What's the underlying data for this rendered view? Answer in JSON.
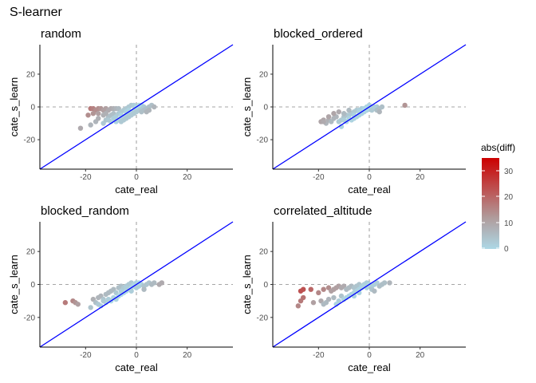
{
  "figure_title": "S-learner",
  "legend": {
    "title": "abs(diff)",
    "ticks": [
      "30",
      "20",
      "10",
      "0"
    ],
    "color_high": "#cc0000",
    "color_mid": "#b09a9a",
    "color_low": "#add8e6"
  },
  "colors": {
    "identity_line": "#0000ff",
    "reference_lines": "#a6a6a6"
  },
  "chart_data": [
    {
      "type": "scatter",
      "title": "random",
      "xlabel": "cate_real",
      "ylabel": "cate_s_learn",
      "xlim": [
        -38,
        38
      ],
      "ylim": [
        -38,
        38
      ],
      "x_ticks": [
        "-20",
        "0",
        "20"
      ],
      "y_ticks": [
        "20",
        "0",
        "-20"
      ],
      "reference_lines": {
        "x": 0,
        "y": 0
      },
      "identity_line": true,
      "grid": false,
      "points": [
        [
          -18,
          -1
        ],
        [
          -17,
          -1
        ],
        [
          -16,
          -2
        ],
        [
          -15,
          -1
        ],
        [
          -14,
          -1
        ],
        [
          -13,
          -2
        ],
        [
          -12,
          -1
        ],
        [
          -11,
          -2
        ],
        [
          -10,
          -1
        ],
        [
          -9,
          -1
        ],
        [
          -8,
          -1
        ],
        [
          -7,
          -1
        ],
        [
          -17,
          -4
        ],
        [
          -15,
          -4
        ],
        [
          -19,
          -5
        ],
        [
          -22,
          -13
        ],
        [
          -18,
          -11
        ],
        [
          -16,
          -9
        ],
        [
          -15,
          -7
        ],
        [
          -13,
          -10
        ],
        [
          -12,
          -8
        ],
        [
          -11,
          -6
        ],
        [
          -10,
          -5
        ],
        [
          -9,
          -4
        ],
        [
          -8,
          -6
        ],
        [
          -7,
          -4
        ],
        [
          -6,
          -3
        ],
        [
          -5,
          -2
        ],
        [
          -4,
          -1
        ],
        [
          -3,
          0
        ],
        [
          -2,
          1
        ],
        [
          -1,
          1
        ],
        [
          0,
          -1
        ],
        [
          1,
          0
        ],
        [
          2,
          1
        ],
        [
          3,
          0
        ],
        [
          4,
          -1
        ],
        [
          5,
          0
        ],
        [
          6,
          1
        ],
        [
          7,
          0
        ],
        [
          -7,
          -8
        ],
        [
          -6,
          -7
        ],
        [
          -5,
          -6
        ],
        [
          -4,
          -5
        ],
        [
          -3,
          -4
        ],
        [
          -2,
          -3
        ],
        [
          -1,
          -2
        ],
        [
          0,
          -3
        ],
        [
          -8,
          -9
        ],
        [
          -9,
          -7
        ],
        [
          -10,
          -9
        ],
        [
          -11,
          -8
        ],
        [
          -6,
          -9
        ],
        [
          -5,
          -8
        ],
        [
          -4,
          -7
        ],
        [
          -3,
          -6
        ],
        [
          -2,
          -5
        ],
        [
          1,
          -2
        ],
        [
          2,
          -1
        ],
        [
          3,
          -2
        ],
        [
          4,
          -3
        ],
        [
          5,
          -2
        ],
        [
          -1,
          -4
        ],
        [
          0,
          0
        ],
        [
          -4,
          -3
        ],
        [
          -6,
          -5
        ],
        [
          -12,
          -4
        ],
        [
          -13,
          -5
        ],
        [
          1,
          1
        ],
        [
          2,
          -3
        ],
        [
          -3,
          -2
        ]
      ]
    },
    {
      "type": "scatter",
      "title": "blocked_ordered",
      "xlabel": "cate_real",
      "ylabel": "cate_s_learn",
      "xlim": [
        -38,
        38
      ],
      "ylim": [
        -38,
        38
      ],
      "x_ticks": [
        "-20",
        "0",
        "20"
      ],
      "y_ticks": [
        "20",
        "0",
        "-20"
      ],
      "reference_lines": {
        "x": 0,
        "y": 0
      },
      "identity_line": true,
      "grid": false,
      "points": [
        [
          -19,
          -9
        ],
        [
          -18,
          -8
        ],
        [
          -17,
          -10
        ],
        [
          -16,
          -8
        ],
        [
          -15,
          -9
        ],
        [
          -14,
          -7
        ],
        [
          -13,
          -6
        ],
        [
          -12,
          -9
        ],
        [
          -11,
          -8
        ],
        [
          -10,
          -6
        ],
        [
          -9,
          -5
        ],
        [
          -8,
          -5
        ],
        [
          -7,
          -4
        ],
        [
          -6,
          -3
        ],
        [
          -5,
          -2
        ],
        [
          -4,
          -2
        ],
        [
          -3,
          -1
        ],
        [
          -2,
          -1
        ],
        [
          -1,
          0
        ],
        [
          0,
          1
        ],
        [
          1,
          0
        ],
        [
          2,
          -1
        ],
        [
          3,
          0
        ],
        [
          4,
          -1
        ],
        [
          14,
          1
        ],
        [
          -14,
          -4
        ],
        [
          -12,
          -3
        ],
        [
          -10,
          -4
        ],
        [
          -8,
          -2
        ],
        [
          -11,
          -12
        ],
        [
          -9,
          -9
        ],
        [
          -7,
          -8
        ],
        [
          -6,
          -7
        ],
        [
          -5,
          -6
        ],
        [
          -4,
          -5
        ],
        [
          -3,
          -4
        ],
        [
          -2,
          -3
        ],
        [
          -1,
          -2
        ],
        [
          0,
          -1
        ],
        [
          -8,
          -7
        ],
        [
          -10,
          -8
        ],
        [
          -16,
          -6
        ],
        [
          -18,
          -9
        ],
        [
          -6,
          -5
        ],
        [
          -4,
          -3
        ],
        [
          -2,
          -2
        ],
        [
          1,
          -2
        ],
        [
          2,
          0
        ],
        [
          3,
          -2
        ],
        [
          4,
          -3
        ],
        [
          5,
          0
        ],
        [
          -1,
          -1
        ]
      ]
    },
    {
      "type": "scatter",
      "title": "blocked_random",
      "xlabel": "cate_real",
      "ylabel": "cate_s_learn",
      "xlim": [
        -38,
        38
      ],
      "ylim": [
        -38,
        38
      ],
      "x_ticks": [
        "-20",
        "0",
        "20"
      ],
      "y_ticks": [
        "20",
        "0",
        "-20"
      ],
      "reference_lines": {
        "x": 0,
        "y": 0
      },
      "identity_line": true,
      "grid": false,
      "points": [
        [
          -28,
          -11
        ],
        [
          -25,
          -10
        ],
        [
          -24,
          -11
        ],
        [
          -23,
          -12
        ],
        [
          -17,
          -9
        ],
        [
          -16,
          -11
        ],
        [
          -15,
          -8
        ],
        [
          -14,
          -7
        ],
        [
          -13,
          -9
        ],
        [
          -12,
          -6
        ],
        [
          -11,
          -5
        ],
        [
          -10,
          -4
        ],
        [
          -9,
          -3
        ],
        [
          -8,
          -5
        ],
        [
          -7,
          -2
        ],
        [
          -6,
          -1
        ],
        [
          -5,
          -2
        ],
        [
          -4,
          -1
        ],
        [
          -3,
          0
        ],
        [
          -2,
          1
        ],
        [
          -1,
          0
        ],
        [
          0,
          1
        ],
        [
          1,
          -1
        ],
        [
          2,
          0
        ],
        [
          3,
          -1
        ],
        [
          4,
          0
        ],
        [
          5,
          1
        ],
        [
          6,
          0
        ],
        [
          7,
          1
        ],
        [
          9,
          0
        ],
        [
          10,
          1
        ],
        [
          3,
          -3
        ],
        [
          -18,
          -14
        ],
        [
          -14,
          -13
        ],
        [
          -12,
          -11
        ],
        [
          -10,
          -10
        ],
        [
          -8,
          -9
        ],
        [
          -7,
          -7
        ],
        [
          -6,
          -6
        ],
        [
          -5,
          -5
        ],
        [
          -4,
          -4
        ],
        [
          -3,
          -3
        ],
        [
          -2,
          -2
        ],
        [
          -1,
          -1
        ],
        [
          -9,
          -8
        ],
        [
          -11,
          -9
        ],
        [
          -6,
          -4
        ],
        [
          -4,
          -2
        ],
        [
          -2,
          -4
        ],
        [
          0,
          -2
        ],
        [
          1,
          1
        ],
        [
          -15,
          -12
        ],
        [
          -13,
          -10
        ]
      ]
    },
    {
      "type": "scatter",
      "title": "correlated_altitude",
      "xlabel": "cate_real",
      "ylabel": "cate_s_learn",
      "xlim": [
        -38,
        38
      ],
      "ylim": [
        -38,
        38
      ],
      "x_ticks": [
        "-20",
        "0",
        "20"
      ],
      "y_ticks": [
        "20",
        "0",
        "-20"
      ],
      "reference_lines": {
        "x": 0,
        "y": 0
      },
      "identity_line": true,
      "grid": false,
      "points": [
        [
          -28,
          -13
        ],
        [
          -27,
          -10
        ],
        [
          -27,
          -4
        ],
        [
          -26,
          -3
        ],
        [
          -26,
          -8
        ],
        [
          -23,
          -3
        ],
        [
          -22,
          -11
        ],
        [
          -20,
          -5
        ],
        [
          -18,
          -3
        ],
        [
          -16,
          -2
        ],
        [
          -15,
          -4
        ],
        [
          -14,
          -3
        ],
        [
          -13,
          -2
        ],
        [
          -12,
          -1
        ],
        [
          -11,
          -2
        ],
        [
          -10,
          -1
        ],
        [
          -9,
          -3
        ],
        [
          -8,
          -2
        ],
        [
          -7,
          -1
        ],
        [
          -6,
          -2
        ],
        [
          -5,
          -1
        ],
        [
          -4,
          0
        ],
        [
          -3,
          -1
        ],
        [
          -2,
          0
        ],
        [
          -1,
          1
        ],
        [
          0,
          0
        ],
        [
          1,
          -1
        ],
        [
          2,
          0
        ],
        [
          3,
          1
        ],
        [
          4,
          -1
        ],
        [
          5,
          0
        ],
        [
          6,
          1
        ],
        [
          8,
          1
        ],
        [
          -19,
          -10
        ],
        [
          -17,
          -11
        ],
        [
          -16,
          -9
        ],
        [
          -14,
          -8
        ],
        [
          -12,
          -10
        ],
        [
          -11,
          -7
        ],
        [
          -10,
          -9
        ],
        [
          -9,
          -8
        ],
        [
          -8,
          -7
        ],
        [
          -7,
          -6
        ],
        [
          -6,
          -5
        ],
        [
          -5,
          -4
        ],
        [
          -4,
          -3
        ],
        [
          -3,
          -2
        ],
        [
          -2,
          -1
        ],
        [
          -13,
          -12
        ],
        [
          -18,
          -12
        ],
        [
          -6,
          -7
        ],
        [
          -4,
          -5
        ],
        [
          -1,
          -2
        ],
        [
          1,
          -3
        ],
        [
          2,
          -4
        ]
      ]
    }
  ]
}
